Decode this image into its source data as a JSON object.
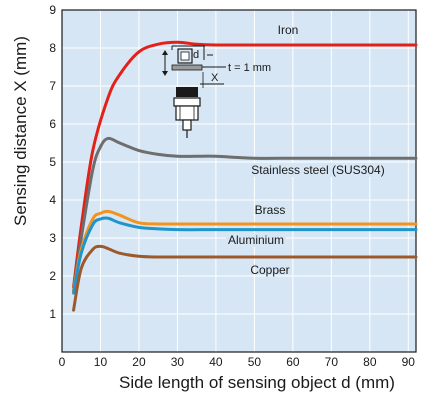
{
  "chart_data": {
    "type": "line",
    "xlabel": "Side length of sensing object d (mm)",
    "ylabel": "Sensing distance X (mm)",
    "xlim": [
      0,
      92
    ],
    "ylim": [
      0,
      9
    ],
    "x_ticks": [
      "0",
      "10",
      "20",
      "30",
      "40",
      "50",
      "60",
      "70",
      "80",
      "90"
    ],
    "y_ticks": [
      "1",
      "2",
      "3",
      "4",
      "5",
      "6",
      "7",
      "8",
      "9"
    ],
    "grid": true,
    "background_color": "#d6e6f4",
    "series": [
      {
        "name": "Iron",
        "color": "#e32119",
        "x": [
          3,
          5,
          8,
          12,
          15,
          20,
          25,
          30,
          35,
          40,
          50,
          60,
          70,
          80,
          92
        ],
        "values": [
          1.7,
          3.3,
          5.3,
          6.7,
          7.3,
          7.9,
          8.1,
          8.15,
          8.1,
          8.08,
          8.08,
          8.08,
          8.08,
          8.08,
          8.08
        ]
      },
      {
        "name": "Stainless steel (SUS304)",
        "color": "#6e6e6e",
        "x": [
          3,
          5,
          8,
          10,
          12,
          15,
          20,
          25,
          30,
          35,
          40,
          50,
          60,
          70,
          80,
          92
        ],
        "values": [
          1.6,
          3.0,
          4.8,
          5.4,
          5.62,
          5.5,
          5.3,
          5.2,
          5.15,
          5.15,
          5.15,
          5.1,
          5.1,
          5.1,
          5.1,
          5.1
        ]
      },
      {
        "name": "Brass",
        "color": "#f0941e",
        "x": [
          3,
          5,
          8,
          10,
          12,
          15,
          20,
          25,
          30,
          40,
          50,
          60,
          70,
          80,
          92
        ],
        "values": [
          1.6,
          2.7,
          3.5,
          3.65,
          3.7,
          3.6,
          3.4,
          3.37,
          3.37,
          3.37,
          3.37,
          3.37,
          3.37,
          3.37,
          3.37
        ]
      },
      {
        "name": "Aluminium",
        "color": "#1f95cc",
        "x": [
          3,
          5,
          8,
          10,
          12,
          15,
          20,
          25,
          30,
          40,
          50,
          60,
          70,
          80,
          92
        ],
        "values": [
          1.55,
          2.6,
          3.35,
          3.5,
          3.52,
          3.4,
          3.28,
          3.24,
          3.22,
          3.22,
          3.22,
          3.22,
          3.22,
          3.22,
          3.22
        ]
      },
      {
        "name": "Copper",
        "color": "#9c5a2c",
        "x": [
          3,
          5,
          8,
          10,
          12,
          15,
          20,
          25,
          30,
          40,
          50,
          60,
          70,
          80,
          92
        ],
        "values": [
          1.1,
          2.2,
          2.7,
          2.78,
          2.72,
          2.6,
          2.52,
          2.5,
          2.5,
          2.5,
          2.5,
          2.5,
          2.5,
          2.5,
          2.5
        ]
      }
    ]
  },
  "diagram": {
    "d_label": "d",
    "t_label": "t = 1 mm",
    "x_label": "X"
  }
}
